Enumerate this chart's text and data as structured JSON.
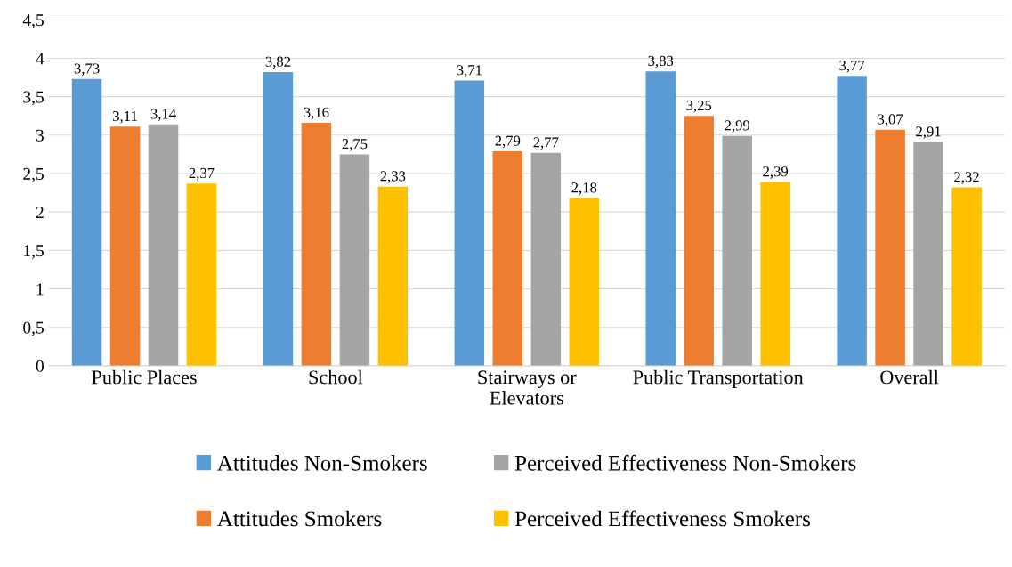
{
  "chart_data": {
    "type": "bar",
    "categories": [
      "Public Places",
      "School",
      "Stairways or\nElevators",
      "Public Transportation",
      "Overall"
    ],
    "series": [
      {
        "name": "Attitudes Non-Smokers",
        "color": "#5b9bd5",
        "values": [
          3.73,
          3.82,
          3.71,
          3.83,
          3.77
        ],
        "value_labels": [
          "3,73",
          "3,82",
          "3,71",
          "3,83",
          "3,77"
        ]
      },
      {
        "name": "Attitudes Smokers",
        "color": "#ed7d31",
        "values": [
          3.11,
          3.16,
          2.79,
          3.25,
          3.07
        ],
        "value_labels": [
          "3,11",
          "3,16",
          "2,79",
          "3,25",
          "3,07"
        ]
      },
      {
        "name": "Perceived Effectiveness Non-Smokers",
        "color": "#a5a5a5",
        "values": [
          3.14,
          2.75,
          2.77,
          2.99,
          2.91
        ],
        "value_labels": [
          "3,14",
          "2,75",
          "2,77",
          "2,99",
          "2,91"
        ]
      },
      {
        "name": "Perceived Effectiveness Smokers",
        "color": "#ffc000",
        "values": [
          2.37,
          2.33,
          2.18,
          2.39,
          2.32
        ],
        "value_labels": [
          "2,37",
          "2,33",
          "2,18",
          "2,39",
          "2,32"
        ]
      }
    ],
    "ylim": [
      0,
      4.5
    ],
    "yticks": [
      0,
      {
        "value": 0.5,
        "label": "0,5"
      },
      1,
      {
        "value": 1.5,
        "label": "1,5"
      },
      2,
      {
        "value": 2.5,
        "label": "2,5"
      },
      3,
      {
        "value": 3.5,
        "label": "3,5"
      },
      4,
      {
        "value": 4.5,
        "label": "4,5"
      }
    ],
    "grid": "y",
    "legend": "bottom"
  }
}
